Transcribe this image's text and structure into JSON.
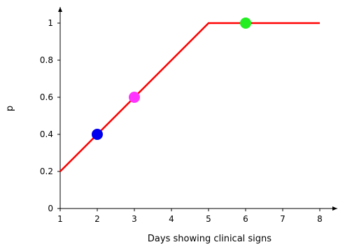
{
  "chart_data": {
    "type": "line",
    "title": "",
    "xlabel": "Days showing clinical signs",
    "ylabel": "p",
    "xlim": [
      1,
      8
    ],
    "ylim": [
      0,
      1
    ],
    "x_ticks": [
      1,
      2,
      3,
      4,
      5,
      6,
      7,
      8
    ],
    "y_ticks": [
      0,
      0.2,
      0.4,
      0.6,
      0.8,
      1
    ],
    "y_tick_labels": [
      "0",
      "0.2",
      "0.4",
      "0.6",
      "0.8",
      "1"
    ],
    "grid": false,
    "legend": "none",
    "series": [
      {
        "color": "#ff0000",
        "points": [
          [
            1,
            0.2
          ],
          [
            5,
            1
          ],
          [
            8,
            1
          ]
        ]
      }
    ],
    "markers": [
      {
        "x": 2,
        "y": 0.4,
        "color": "#0000ee"
      },
      {
        "x": 3,
        "y": 0.6,
        "color": "#ff33ff"
      },
      {
        "x": 6,
        "y": 1.0,
        "color": "#22ee22"
      }
    ]
  }
}
